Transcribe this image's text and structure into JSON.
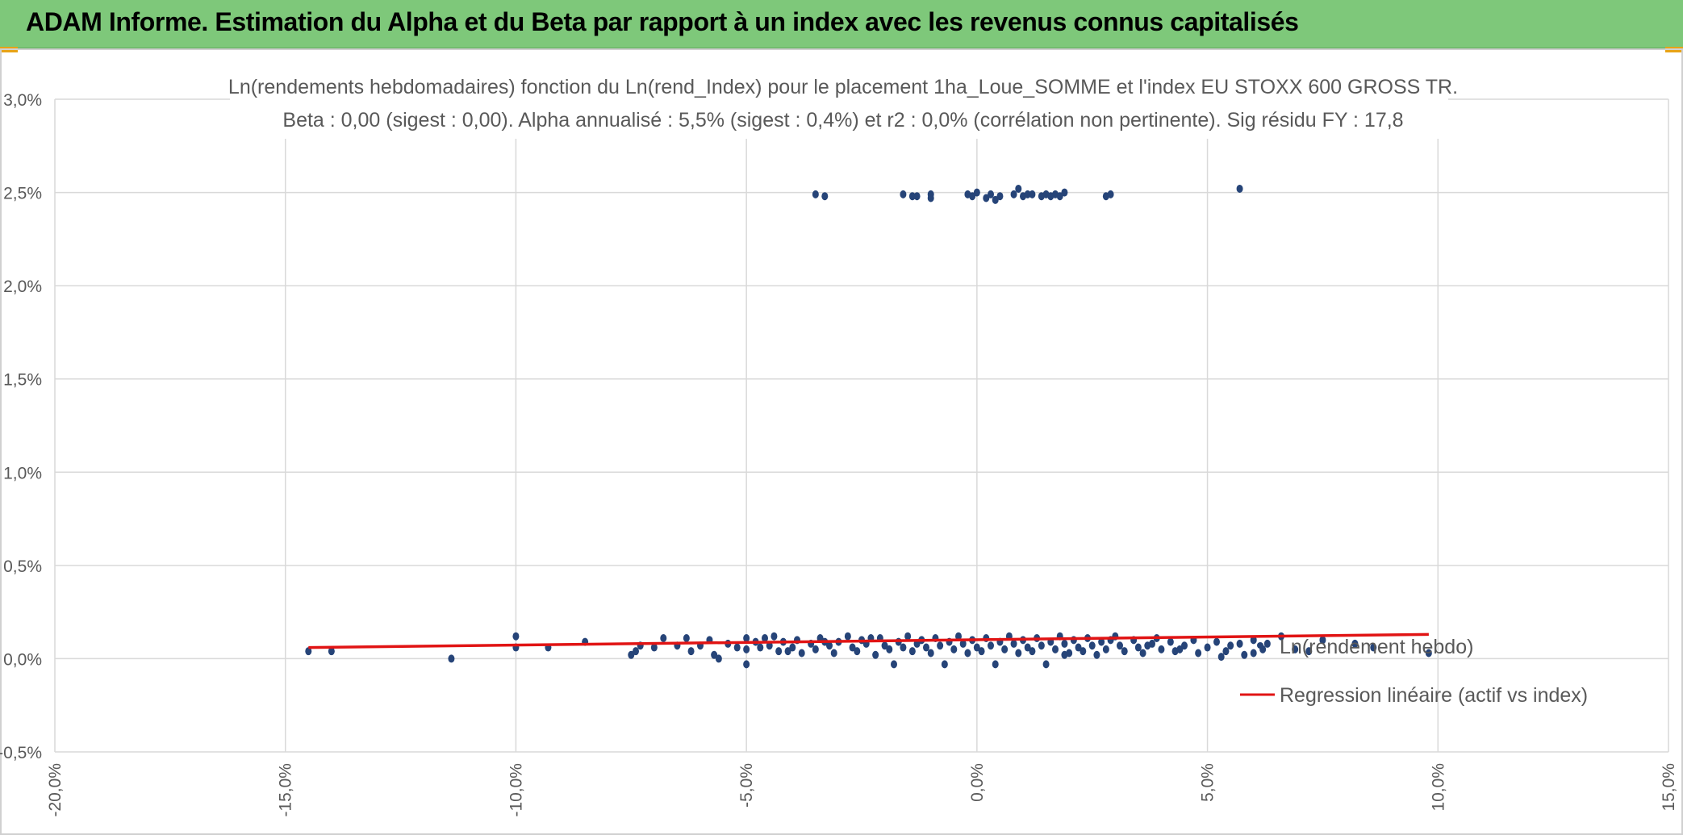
{
  "header": {
    "title": "ADAM Informe. Estimation du Alpha et du Beta par rapport à un index avec les revenus connus capitalisés",
    "bar_color": "#7ec87a"
  },
  "chart_data": {
    "type": "scatter",
    "title": "Ln(rendements hebdomadaires) fonction du Ln(rend_Index) pour le placement 1ha_Loue_SOMME et l'index EU STOXX 600 GROSS TR.",
    "subtitle": "Beta : 0,00 (sigest : 0,00). Alpha annualisé : 5,5% (sigest : 0,4%) et r2 : 0,0% (corrélation non pertinente). Sig résidu FY : 17,8",
    "xlim": [
      -0.2,
      0.15
    ],
    "ylim": [
      -0.005,
      0.03
    ],
    "x_ticks": [
      {
        "value": -0.2,
        "label": "-20,0%"
      },
      {
        "value": -0.15,
        "label": "-15,0%"
      },
      {
        "value": -0.1,
        "label": "-10,0%"
      },
      {
        "value": -0.05,
        "label": "-5,0%"
      },
      {
        "value": 0.0,
        "label": "0,0%"
      },
      {
        "value": 0.05,
        "label": "5,0%"
      },
      {
        "value": 0.1,
        "label": "10,0%"
      },
      {
        "value": 0.15,
        "label": "15,0%"
      }
    ],
    "y_ticks": [
      {
        "value": 0.03,
        "label": "3,0%"
      },
      {
        "value": 0.025,
        "label": "2,5%"
      },
      {
        "value": 0.02,
        "label": "2,0%"
      },
      {
        "value": 0.015,
        "label": "1,5%"
      },
      {
        "value": 0.01,
        "label": "1,0%"
      },
      {
        "value": 0.005,
        "label": "0,5%"
      },
      {
        "value": 0.0,
        "label": "0,0%"
      },
      {
        "value": -0.005,
        "label": "-0,5%"
      }
    ],
    "grid": true,
    "legend_position": "right",
    "series": [
      {
        "name": "Ln(rendement hebdo)",
        "kind": "scatter",
        "color": "#264478",
        "points": [
          [
            -0.145,
            0.0004
          ],
          [
            -0.14,
            0.0004
          ],
          [
            -0.114,
            0.0
          ],
          [
            -0.1,
            0.0012
          ],
          [
            -0.1,
            0.0006
          ],
          [
            -0.093,
            0.0006
          ],
          [
            -0.085,
            0.0009
          ],
          [
            -0.074,
            0.0004
          ],
          [
            -0.075,
            0.0002
          ],
          [
            -0.073,
            0.0007
          ],
          [
            -0.07,
            0.0006
          ],
          [
            -0.065,
            0.0007
          ],
          [
            -0.063,
            0.0011
          ],
          [
            -0.062,
            0.0004
          ],
          [
            -0.06,
            0.0007
          ],
          [
            -0.058,
            0.001
          ],
          [
            -0.057,
            0.0002
          ],
          [
            -0.056,
            0.0
          ],
          [
            -0.054,
            0.0008
          ],
          [
            -0.052,
            0.0006
          ],
          [
            -0.05,
            0.0011
          ],
          [
            -0.05,
            0.0005
          ],
          [
            -0.05,
            -0.0003
          ],
          [
            -0.048,
            0.0009
          ],
          [
            -0.047,
            0.0006
          ],
          [
            -0.046,
            0.0011
          ],
          [
            -0.045,
            0.0007
          ],
          [
            -0.044,
            0.0012
          ],
          [
            -0.043,
            0.0004
          ],
          [
            -0.042,
            0.0009
          ],
          [
            -0.04,
            0.0006
          ],
          [
            -0.039,
            0.001
          ],
          [
            -0.038,
            0.0003
          ],
          [
            -0.036,
            0.0008
          ],
          [
            -0.035,
            0.0005
          ],
          [
            -0.034,
            0.0011
          ],
          [
            -0.032,
            0.0007
          ],
          [
            -0.031,
            0.0003
          ],
          [
            -0.03,
            0.0009
          ],
          [
            -0.028,
            0.0012
          ],
          [
            -0.027,
            0.0006
          ],
          [
            -0.026,
            0.0004
          ],
          [
            -0.025,
            0.001
          ],
          [
            -0.024,
            0.0008
          ],
          [
            -0.022,
            0.0002
          ],
          [
            -0.021,
            0.0011
          ],
          [
            -0.02,
            0.0007
          ],
          [
            -0.019,
            0.0005
          ],
          [
            -0.018,
            -0.0003
          ],
          [
            -0.017,
            0.0009
          ],
          [
            -0.016,
            0.0006
          ],
          [
            -0.015,
            0.0012
          ],
          [
            -0.014,
            0.0004
          ],
          [
            -0.013,
            0.0008
          ],
          [
            -0.012,
            0.001
          ],
          [
            -0.011,
            0.0006
          ],
          [
            -0.01,
            0.0003
          ],
          [
            -0.009,
            0.0011
          ],
          [
            -0.008,
            0.0007
          ],
          [
            -0.007,
            -0.0003
          ],
          [
            -0.006,
            0.0009
          ],
          [
            -0.005,
            0.0005
          ],
          [
            -0.004,
            0.0012
          ],
          [
            -0.003,
            0.0008
          ],
          [
            -0.002,
            0.0003
          ],
          [
            -0.001,
            0.001
          ],
          [
            0.0,
            0.0006
          ],
          [
            0.001,
            0.0004
          ],
          [
            0.002,
            0.0011
          ],
          [
            0.003,
            0.0007
          ],
          [
            0.004,
            -0.0003
          ],
          [
            0.005,
            0.0009
          ],
          [
            0.006,
            0.0005
          ],
          [
            0.007,
            0.0012
          ],
          [
            0.008,
            0.0008
          ],
          [
            0.009,
            0.0003
          ],
          [
            0.01,
            0.001
          ],
          [
            0.011,
            0.0006
          ],
          [
            0.012,
            0.0004
          ],
          [
            0.013,
            0.0011
          ],
          [
            0.014,
            0.0007
          ],
          [
            0.015,
            -0.0003
          ],
          [
            0.016,
            0.0009
          ],
          [
            0.017,
            0.0005
          ],
          [
            0.018,
            0.0012
          ],
          [
            0.019,
            0.0008
          ],
          [
            0.02,
            0.0003
          ],
          [
            0.021,
            0.001
          ],
          [
            0.022,
            0.0006
          ],
          [
            0.023,
            0.0004
          ],
          [
            0.024,
            0.0011
          ],
          [
            0.025,
            0.0007
          ],
          [
            0.026,
            0.0002
          ],
          [
            0.027,
            0.0009
          ],
          [
            0.028,
            0.0005
          ],
          [
            0.03,
            0.0012
          ],
          [
            0.031,
            0.0007
          ],
          [
            0.032,
            0.0004
          ],
          [
            0.034,
            0.001
          ],
          [
            0.035,
            0.0006
          ],
          [
            0.036,
            0.0003
          ],
          [
            0.038,
            0.0008
          ],
          [
            0.039,
            0.0011
          ],
          [
            0.04,
            0.0005
          ],
          [
            0.042,
            0.0009
          ],
          [
            0.043,
            0.0004
          ],
          [
            0.045,
            0.0007
          ],
          [
            0.047,
            0.001
          ],
          [
            0.048,
            0.0003
          ],
          [
            0.05,
            0.0006
          ],
          [
            0.052,
            0.0009
          ],
          [
            0.054,
            0.0004
          ],
          [
            0.055,
            0.0007
          ],
          [
            0.058,
            0.0002
          ],
          [
            0.06,
            0.001
          ],
          [
            0.062,
            0.0005
          ],
          [
            0.06,
            0.0003
          ],
          [
            0.057,
            0.0008
          ],
          [
            -0.033,
            0.0009
          ],
          [
            0.029,
            0.001
          ],
          [
            0.044,
            0.0005
          ],
          [
            -0.041,
            0.0004
          ],
          [
            0.037,
            0.0007
          ],
          [
            -0.023,
            0.0011
          ],
          [
            0.019,
            0.0002
          ],
          [
            0.098,
            0.0003
          ],
          [
            0.082,
            0.0008
          ],
          [
            0.075,
            0.001
          ],
          [
            0.072,
            0.0004
          ],
          [
            0.066,
            0.0012
          ],
          [
            0.063,
            0.0008
          ],
          [
            0.069,
            0.0005
          ],
          [
            0.053,
            0.0001
          ],
          [
            -0.068,
            0.0011
          ],
          [
            0.086,
            0.0006
          ],
          [
            -0.035,
            0.0249
          ],
          [
            -0.033,
            0.0248
          ],
          [
            -0.016,
            0.0249
          ],
          [
            -0.014,
            0.0248
          ],
          [
            -0.013,
            0.0248
          ],
          [
            -0.01,
            0.0247
          ],
          [
            -0.01,
            0.0249
          ],
          [
            -0.002,
            0.0249
          ],
          [
            -0.001,
            0.0248
          ],
          [
            0.0,
            0.025
          ],
          [
            0.002,
            0.0247
          ],
          [
            0.003,
            0.0249
          ],
          [
            0.004,
            0.0246
          ],
          [
            0.005,
            0.0248
          ],
          [
            0.008,
            0.0249
          ],
          [
            0.009,
            0.0252
          ],
          [
            0.01,
            0.0248
          ],
          [
            0.011,
            0.0249
          ],
          [
            0.012,
            0.0249
          ],
          [
            0.014,
            0.0248
          ],
          [
            0.015,
            0.0249
          ],
          [
            0.016,
            0.0248
          ],
          [
            0.017,
            0.0249
          ],
          [
            0.018,
            0.0248
          ],
          [
            0.019,
            0.025
          ],
          [
            0.028,
            0.0248
          ],
          [
            0.029,
            0.0249
          ],
          [
            0.057,
            0.0252
          ]
        ]
      },
      {
        "name": "Regression linéaire (actif vs index)",
        "kind": "line",
        "color": "#e11414",
        "points": [
          [
            -0.145,
            0.0006
          ],
          [
            0.098,
            0.0013
          ]
        ]
      }
    ]
  }
}
